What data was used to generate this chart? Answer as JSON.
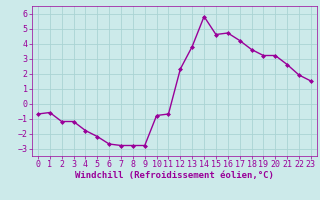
{
  "x": [
    0,
    1,
    2,
    3,
    4,
    5,
    6,
    7,
    8,
    9,
    10,
    11,
    12,
    13,
    14,
    15,
    16,
    17,
    18,
    19,
    20,
    21,
    22,
    23
  ],
  "y": [
    -0.7,
    -0.6,
    -1.2,
    -1.2,
    -1.8,
    -2.2,
    -2.7,
    -2.8,
    -2.8,
    -2.8,
    -0.8,
    -0.7,
    2.3,
    3.8,
    5.8,
    4.6,
    4.7,
    4.2,
    3.6,
    3.2,
    3.2,
    2.6,
    1.9,
    1.5
  ],
  "line_color": "#990099",
  "marker": "D",
  "marker_size": 2,
  "xlabel": "Windchill (Refroidissement éolien,°C)",
  "xlim": [
    -0.5,
    23.5
  ],
  "ylim": [
    -3.5,
    6.5
  ],
  "yticks": [
    -3,
    -2,
    -1,
    0,
    1,
    2,
    3,
    4,
    5,
    6
  ],
  "xticks": [
    0,
    1,
    2,
    3,
    4,
    5,
    6,
    7,
    8,
    9,
    10,
    11,
    12,
    13,
    14,
    15,
    16,
    17,
    18,
    19,
    20,
    21,
    22,
    23
  ],
  "grid_color": "#aad4d4",
  "bg_color": "#cceaea",
  "line_and_label_color": "#990099",
  "xlabel_fontsize": 6.5,
  "tick_fontsize": 6.0,
  "linewidth": 1.0
}
